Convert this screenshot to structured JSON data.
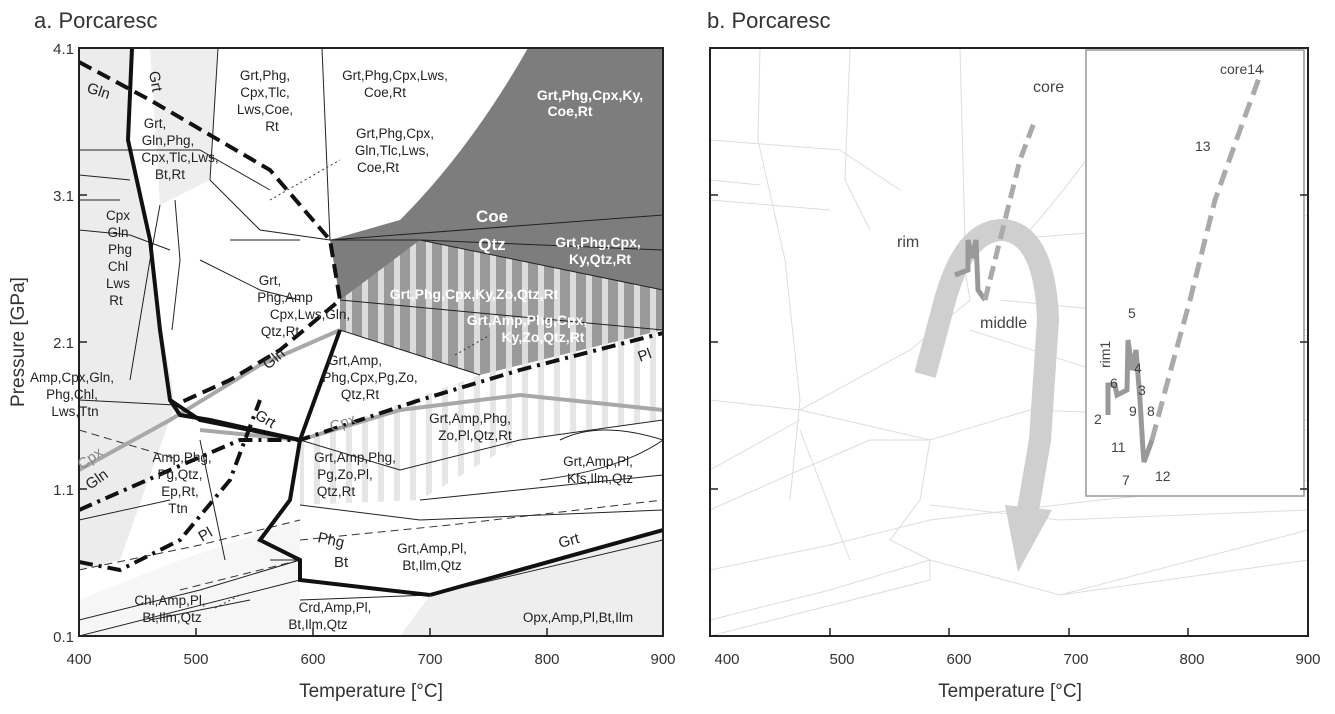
{
  "panel_a": {
    "title": "a. Porcaresc",
    "y_ticks": [
      "4.1",
      "3.1",
      "2.1",
      "1.1",
      "0.1"
    ],
    "x_ticks": [
      "400",
      "500",
      "600",
      "700",
      "800",
      "900"
    ],
    "ylabel": "Pressure [GPa]",
    "xlabel": "Temperature [°C]",
    "fields": {
      "f1": [
        "Grt,Phg,",
        "Cpx,Tlc,",
        "Lws,Coe,",
        "Rt"
      ],
      "f2": [
        "Grt,Phg,Cpx,Lws,",
        "Coe,Rt"
      ],
      "f3": [
        "Grt,Phg,Cpx,Ky,",
        "Coe,Rt"
      ],
      "f4": [
        "Grt,",
        "Gln,Phg,",
        "Cpx,Tlc,Lws,",
        "Bt,Rt"
      ],
      "f5": [
        "Grt,Phg,Cpx,",
        "Gln,Tlc,Lws,",
        "Coe,Rt"
      ],
      "f6": [
        "Cpx",
        "Gln",
        "Phg",
        "Chl",
        "Lws",
        "Rt"
      ],
      "coe": "Coe",
      "qtz": "Qtz",
      "f7": [
        "Grt,Phg,Cpx,",
        "Ky,Qtz,Rt"
      ],
      "f8": [
        "Grt,",
        "Phg,Amp",
        "Cpx,Lws,Gln,",
        "Qtz,Rt"
      ],
      "f9": "Grt,Phg,Cpx,Ky,Zo,Qtz,Rt",
      "f10": [
        "Grt,Amp,Phg,Cpx,",
        "Ky,Zo,Qtz,Rt"
      ],
      "f11": [
        "Amp,Cpx,Gln,",
        "Phg,Chl,",
        "Lws,Ttn"
      ],
      "f12": [
        "Grt,Amp,",
        "Phg,Cpx,Pg,Zo,",
        "Qtz,Rt"
      ],
      "f13": [
        "Grt,Amp,Phg,",
        "Zo,Pl,Qtz,Rt"
      ],
      "f14": [
        "Amp,Phg,",
        "Pg,Qtz,",
        "Ep,Rt,",
        "Ttn"
      ],
      "f15": [
        "Grt,Amp,Phg,",
        "Pg,Zo,Pl,",
        "Qtz,Rt"
      ],
      "f16": [
        "Grt,Amp,Pl,",
        "Kfs,Ilm,Qtz"
      ],
      "f17": [
        "Grt,Amp,Pl,",
        "Bt,Ilm,Qtz"
      ],
      "f18": [
        "Chl,Amp,Pl,",
        "Bt,Ilm,Qtz"
      ],
      "f19": [
        "Crd,Amp,Pl,",
        "Bt,Ilm,Qtz"
      ],
      "f20": "Opx,Amp,Pl,Bt,Ilm"
    },
    "phases": {
      "grt_top": "Grt",
      "gln_top": "Gln",
      "gln_mid": "Gln",
      "grt_mid": "Grt",
      "cpx_mid": "Cpx",
      "cpx_left": "Cpx",
      "gln_left": "Gln",
      "pl_right": "Pl",
      "pl_left": "Pl",
      "phg": "Phg",
      "bt": "Bt",
      "grt_low": "Grt"
    }
  },
  "panel_b": {
    "title": "b. Porcaresc",
    "x_ticks": [
      "400",
      "500",
      "600",
      "700",
      "800",
      "900"
    ],
    "xlabel": "Temperature [°C]",
    "labels": {
      "core": "core",
      "rim": "rim",
      "middle": "middle"
    },
    "inset_labels": {
      "core14": "core14",
      "p13": "13",
      "rim1": "rim1",
      "p5": "5",
      "p4": "4",
      "p6": "6",
      "p3": "3",
      "p9": "9",
      "p8": "8",
      "p2": "2",
      "p11": "11",
      "p7": "7",
      "p12": "12"
    }
  },
  "colors": {
    "field_dark": "#7a7a7a",
    "field_light": "#eeeeee",
    "reaction": "#111111",
    "grey_path": "#aaaaaa",
    "arrow": "#cccccc"
  }
}
